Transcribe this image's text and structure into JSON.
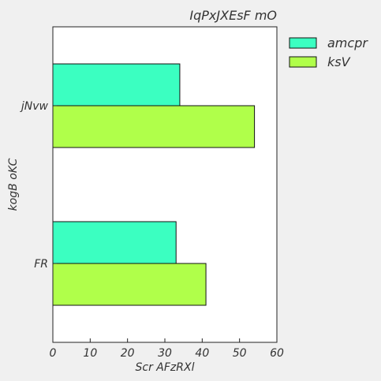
{
  "chart_data": {
    "type": "bar",
    "orientation": "horizontal",
    "title": "IqPxJXEsF mO",
    "xlabel": "Scr AFzRXl",
    "ylabel": "kogB oKC",
    "categories": [
      "jNvw",
      "FR"
    ],
    "series": [
      {
        "name": "amcpr",
        "color": "#3bffc1",
        "values": [
          34,
          33
        ]
      },
      {
        "name": "ksV",
        "color": "#b0ff4a",
        "values": [
          54,
          41
        ]
      }
    ],
    "xlim": [
      0,
      60
    ],
    "xticks": [
      0,
      10,
      20,
      30,
      40,
      50,
      60
    ],
    "grid": false,
    "legend_position": "outside-right"
  }
}
